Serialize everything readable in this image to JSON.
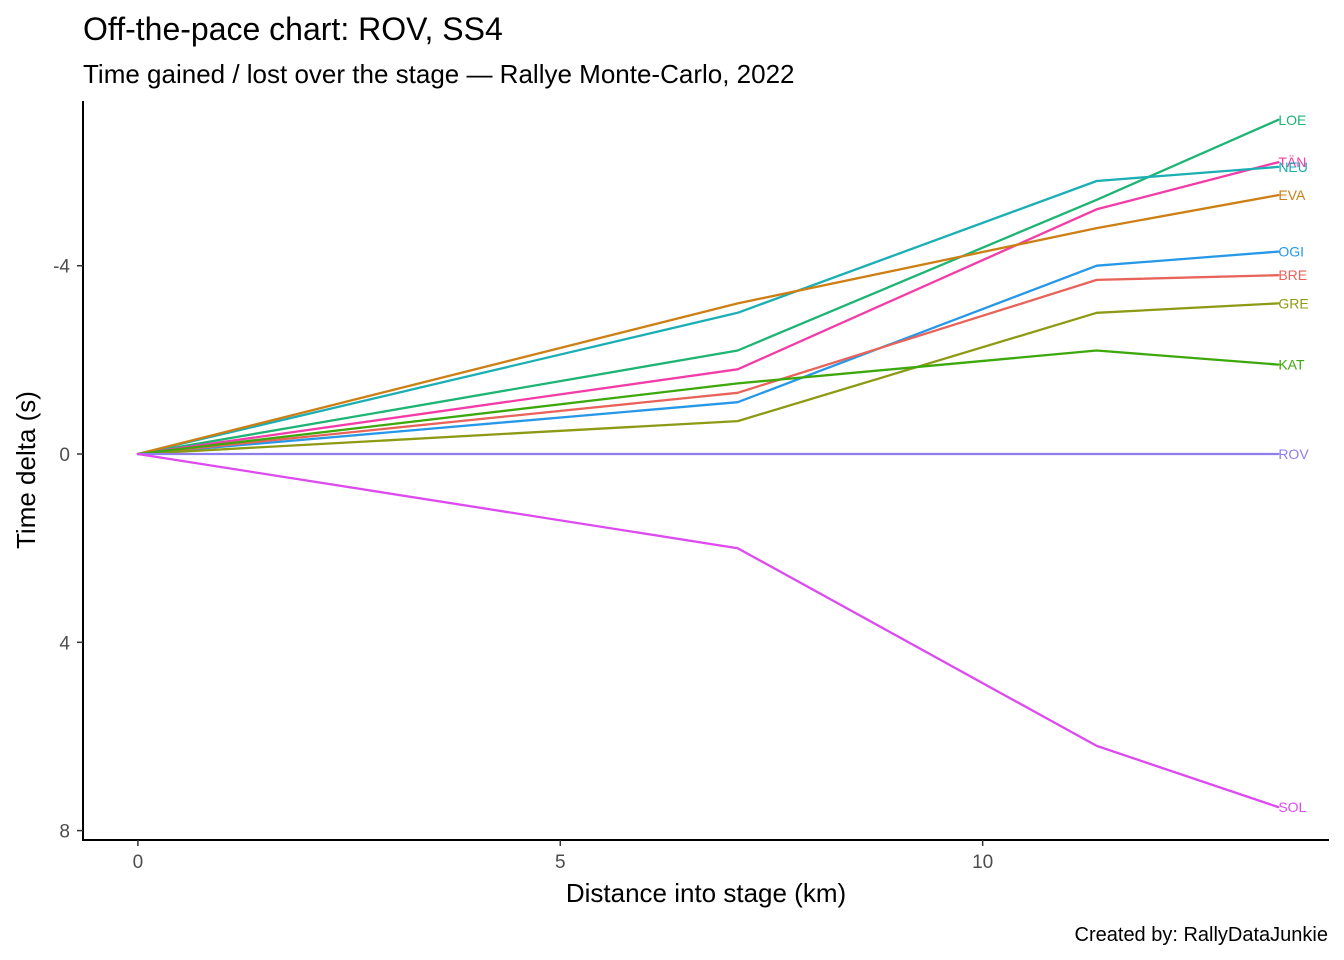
{
  "chart_data": {
    "type": "line",
    "title": "Off-the-pace chart: ROV, SS4",
    "subtitle": "Time gained / lost over the stage — Rallye Monte-Carlo, 2022",
    "xlabel": "Distance into stage (km)",
    "ylabel": "Time delta (s)",
    "caption": "Created by: RallyDataJunkie",
    "y_reversed": true,
    "xlim": [
      -0.65,
      14.1
    ],
    "ylim": [
      -7.5,
      8.2
    ],
    "x_ticks": [
      0,
      5,
      10
    ],
    "x_tick_labels": [
      "0",
      "5",
      "10"
    ],
    "y_ticks": [
      -4,
      0,
      4,
      8
    ],
    "y_tick_labels": [
      "-4",
      "0",
      "4",
      "8"
    ],
    "grid": false,
    "legend": "direct labels at line ends",
    "x": [
      0,
      7.1,
      11.35,
      13.5
    ],
    "series": [
      {
        "name": "LOE",
        "color": "#1EB474",
        "values": [
          0,
          -2.2,
          -5.4,
          -7.1
        ]
      },
      {
        "name": "TÄN",
        "color": "#F23CA8",
        "values": [
          0,
          -1.8,
          -5.2,
          -6.2
        ]
      },
      {
        "name": "NEU",
        "color": "#1BAFB4",
        "values": [
          0,
          -3.0,
          -5.8,
          -6.1
        ]
      },
      {
        "name": "EVA",
        "color": "#CD7F14",
        "values": [
          0,
          -3.2,
          -4.8,
          -5.5
        ]
      },
      {
        "name": "OGI",
        "color": "#2798E8",
        "values": [
          0,
          -1.1,
          -4.0,
          -4.3
        ]
      },
      {
        "name": "BRE",
        "color": "#E8635A",
        "values": [
          0,
          -1.3,
          -3.7,
          -3.8
        ]
      },
      {
        "name": "GRE",
        "color": "#8D9A14",
        "values": [
          0,
          -0.7,
          -3.0,
          -3.2
        ]
      },
      {
        "name": "KAT",
        "color": "#3CA80C",
        "values": [
          0,
          -1.5,
          -2.2,
          -1.9
        ]
      },
      {
        "name": "ROV",
        "color": "#8D7EEC",
        "values": [
          0,
          0,
          0,
          0
        ]
      },
      {
        "name": "SOL",
        "color": "#DD4AEF",
        "values": [
          0,
          2.0,
          6.2,
          7.5
        ]
      }
    ]
  }
}
